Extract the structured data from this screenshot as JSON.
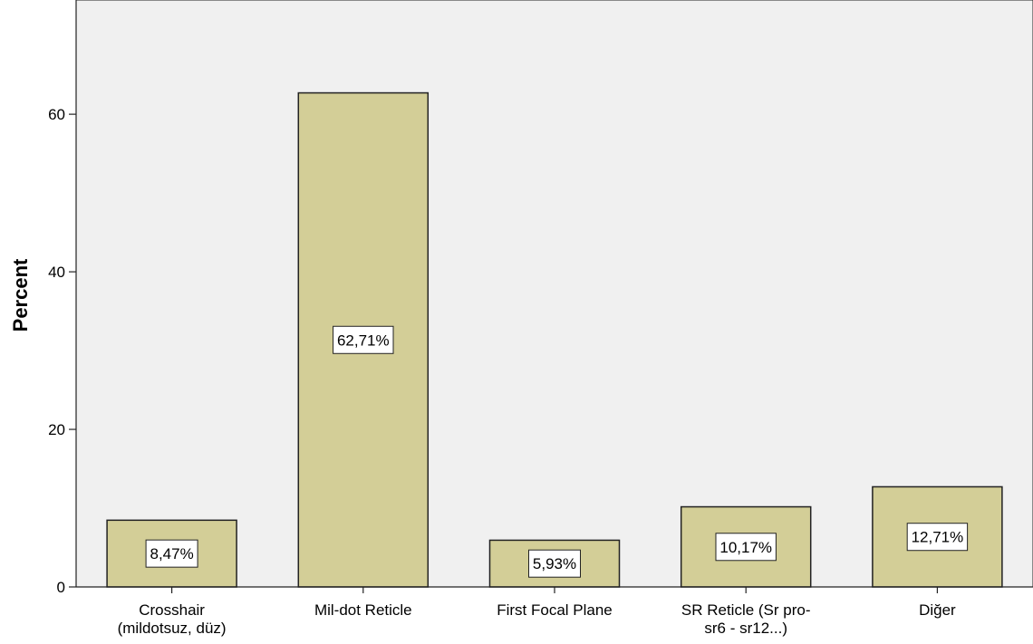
{
  "chart_data": {
    "type": "bar",
    "categories": [
      [
        "Crosshair",
        "(mildotsuz, düz)"
      ],
      [
        "Mil-dot Reticle"
      ],
      [
        "First Focal Plane"
      ],
      [
        "SR Reticle (Sr pro-",
        "sr6 - sr12...)"
      ],
      [
        "Diğer"
      ]
    ],
    "values": [
      8.47,
      62.71,
      5.93,
      10.17,
      12.71
    ],
    "data_labels": [
      "8,47%",
      "62,71%",
      "5,93%",
      "10,17%",
      "12,71%"
    ],
    "title": "",
    "xlabel": "",
    "ylabel": "Percent",
    "ylim": [
      0,
      74.5
    ],
    "yticks": [
      0,
      20,
      40,
      60
    ],
    "ytick_labels": [
      "0",
      "20",
      "40",
      "60"
    ],
    "grid": false,
    "colors": {
      "plot_background": "#f0f0f0",
      "bar_fill": "#d3ce97",
      "bar_stroke": "#222222",
      "label_box": "#ffffff"
    }
  }
}
